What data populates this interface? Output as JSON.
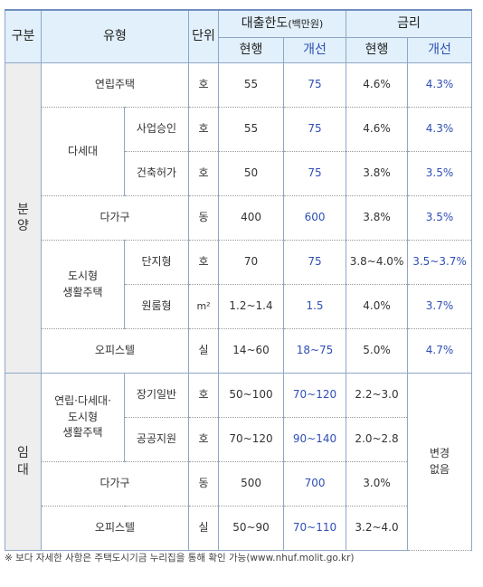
{
  "header": {
    "category": "구분",
    "type": "유형",
    "unit": "단위",
    "loan_title": "대출한도",
    "loan_unit": "(백만원)",
    "rate_title": "금리",
    "current": "현행",
    "improved": "개선"
  },
  "sections": [
    {
      "label": "분양",
      "items": [
        {
          "type": "연립주택",
          "unit": "호",
          "loan": [
            "55",
            "75"
          ],
          "rate": [
            "4.6%",
            "4.3%"
          ]
        },
        {
          "group": "다세대",
          "rows": [
            {
              "type": "사업승인",
              "unit": "호",
              "loan": [
                "55",
                "75"
              ],
              "rate": [
                "4.6%",
                "4.3%"
              ]
            },
            {
              "type": "건축허가",
              "unit": "호",
              "loan": [
                "50",
                "75"
              ],
              "rate": [
                "3.8%",
                "3.5%"
              ]
            }
          ]
        },
        {
          "type": "다가구",
          "unit": "동",
          "loan": [
            "400",
            "600"
          ],
          "rate": [
            "3.8%",
            "3.5%"
          ]
        },
        {
          "group": "도시형\n생활주택",
          "rows": [
            {
              "type": "단지형",
              "unit": "호",
              "loan": [
                "70",
                "75"
              ],
              "rate": [
                "3.8~4.0%",
                "3.5~3.7%"
              ]
            },
            {
              "type": "원룸형",
              "unit": "m²",
              "loan": [
                "1.2~1.4",
                "1.5"
              ],
              "rate": [
                "4.0%",
                "3.7%"
              ]
            }
          ]
        },
        {
          "type": "오피스텔",
          "unit": "실",
          "loan": [
            "14~60",
            "18~75"
          ],
          "rate": [
            "5.0%",
            "4.7%"
          ]
        }
      ]
    },
    {
      "label": "임대",
      "rate_note": "변경\n없음",
      "items": [
        {
          "group": "연립·다세대·\n도시형\n생활주택",
          "rows": [
            {
              "type": "장기일반",
              "unit": "호",
              "loan": [
                "50~100",
                "70~120"
              ],
              "rate": [
                "2.2~3.0"
              ]
            },
            {
              "type": "공공지원",
              "unit": "호",
              "loan": [
                "70~120",
                "90~140"
              ],
              "rate": [
                "2.0~2.8"
              ]
            }
          ]
        },
        {
          "type": "다가구",
          "unit": "동",
          "loan": [
            "500",
            "700"
          ],
          "rate": [
            "3.0%"
          ]
        },
        {
          "type": "오피스텔",
          "unit": "실",
          "loan": [
            "50~90",
            "70~110"
          ],
          "rate": [
            "3.2~4.0"
          ]
        }
      ]
    }
  ],
  "footnote": "※ 보다 자세한 사항은 주택도시기금 누리집을 통해 확인 가능(www.nhuf.molit.go.kr)"
}
